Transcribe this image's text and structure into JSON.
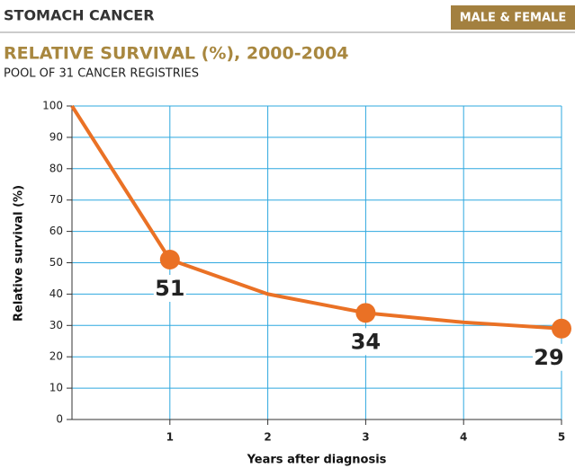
{
  "header": {
    "title": "STOMACH CANCER",
    "badge": "MALE & FEMALE"
  },
  "chart_data": {
    "type": "line",
    "title": "RELATIVE SURVIVAL (%), 2000-2004",
    "subtitle": "POOL OF 31 CANCER REGISTRIES",
    "x_label": "Years after diagnosis",
    "y_label": "Relative survival (%)",
    "x": [
      0,
      1,
      2,
      3,
      4,
      5
    ],
    "series": [
      {
        "name": "Relative survival",
        "color": "#ea7125",
        "values": [
          100,
          51,
          40,
          34,
          31,
          29
        ],
        "value_labels": [
          null,
          "51",
          null,
          "34",
          null,
          "29"
        ]
      }
    ],
    "xlim": [
      0,
      5
    ],
    "xticks": [
      1,
      2,
      3,
      4,
      5
    ],
    "ylim": [
      0,
      100
    ],
    "yticks": [
      0,
      10,
      20,
      30,
      40,
      50,
      60,
      70,
      80,
      90,
      100
    ],
    "grid": true,
    "grid_color": "#2ea8df"
  }
}
